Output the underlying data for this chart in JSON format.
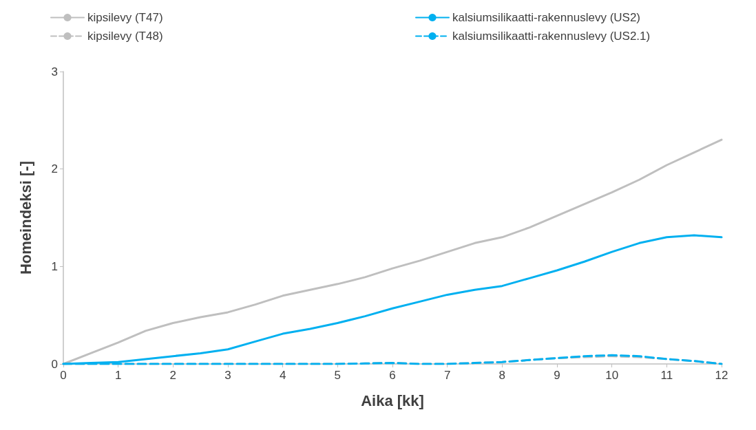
{
  "chart_data": {
    "type": "line",
    "xlabel": "Aika [kk]",
    "ylabel": "Homeindeksi [-]",
    "x": [
      0,
      0.5,
      1,
      1.5,
      2,
      2.5,
      3,
      3.5,
      4,
      4.5,
      5,
      5.5,
      6,
      6.5,
      7,
      7.5,
      8,
      8.5,
      9,
      9.5,
      10,
      10.5,
      11,
      11.5,
      12
    ],
    "series": [
      {
        "name": "kipsilevy (T47)",
        "color": "#bfbfbf",
        "line_style": "solid",
        "values": [
          0,
          0.11,
          0.22,
          0.34,
          0.42,
          0.48,
          0.53,
          0.61,
          0.7,
          0.76,
          0.82,
          0.89,
          0.98,
          1.06,
          1.15,
          1.24,
          1.3,
          1.4,
          1.52,
          1.64,
          1.76,
          1.89,
          2.04,
          2.17,
          2.3
        ]
      },
      {
        "name": "kipsilevy (T48)",
        "color": "#bfbfbf",
        "line_style": "dashed",
        "values": [
          0,
          0,
          0,
          0,
          0,
          0,
          0,
          0,
          0,
          0,
          0,
          0.005,
          0.01,
          0,
          0,
          0.01,
          0.02,
          0.04,
          0.06,
          0.07,
          0.08,
          0.07,
          0.05,
          0.03,
          0
        ]
      },
      {
        "name": "kalsiumsilikaatti-rakennuslevy (US2)",
        "color": "#00b0f0",
        "line_style": "solid",
        "values": [
          0,
          0.01,
          0.02,
          0.05,
          0.08,
          0.11,
          0.15,
          0.23,
          0.31,
          0.36,
          0.42,
          0.49,
          0.57,
          0.64,
          0.71,
          0.76,
          0.8,
          0.88,
          0.96,
          1.05,
          1.15,
          1.24,
          1.3,
          1.32,
          1.3
        ]
      },
      {
        "name": "kalsiumsilikaatti-rakennuslevy (US2.1)",
        "color": "#00b0f0",
        "line_style": "dashed",
        "values": [
          0,
          0,
          0,
          0,
          0,
          0,
          0,
          0,
          0,
          0,
          0,
          0.005,
          0.01,
          0,
          0,
          0.01,
          0.02,
          0.04,
          0.06,
          0.08,
          0.09,
          0.08,
          0.05,
          0.03,
          0
        ]
      }
    ],
    "xlim": [
      0,
      12
    ],
    "xticks": [
      0,
      1,
      2,
      3,
      4,
      5,
      6,
      7,
      8,
      9,
      10,
      11,
      12
    ],
    "ylim": [
      0,
      3
    ],
    "yticks": [
      0,
      1,
      2,
      3
    ],
    "grid": false,
    "legend": "top",
    "marker": "none"
  }
}
